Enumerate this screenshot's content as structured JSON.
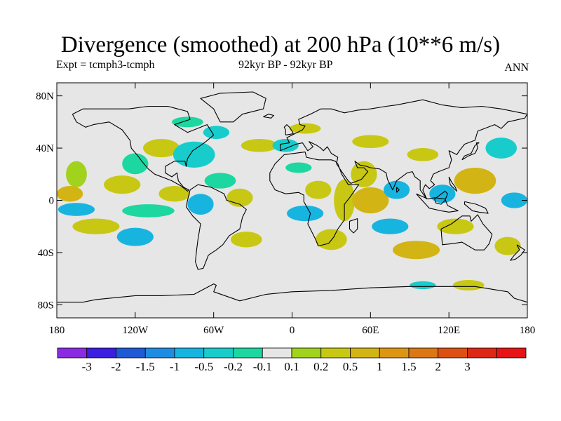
{
  "title": "Divergence (smoothed) at 200 hPa (10**6 m/s)",
  "subtitle_left": "Expt = tcmph3-tcmph",
  "subtitle_center": "92kyr BP - 92kyr BP",
  "subtitle_right": "ANN",
  "map": {
    "projection": "cylindrical-equidistant",
    "lon_range": [
      -180,
      180
    ],
    "lat_range": [
      -90,
      90
    ],
    "background_color": "#e6e6e6",
    "lat_ticks": [
      {
        "value": 80,
        "label": "80N"
      },
      {
        "value": 40,
        "label": "40N"
      },
      {
        "value": 0,
        "label": "0"
      },
      {
        "value": -40,
        "label": "40S"
      },
      {
        "value": -80,
        "label": "80S"
      }
    ],
    "lon_ticks": [
      {
        "value": -180,
        "label": "180"
      },
      {
        "value": -120,
        "label": "120W"
      },
      {
        "value": -60,
        "label": "60W"
      },
      {
        "value": 0,
        "label": "0"
      },
      {
        "value": 60,
        "label": "60E"
      },
      {
        "value": 120,
        "label": "120E"
      },
      {
        "value": 180,
        "label": "180"
      }
    ]
  },
  "colorbar": {
    "colors": [
      "#8a2be2",
      "#3b1ee0",
      "#1e5ad6",
      "#1e8ce0",
      "#18b4e0",
      "#18cccc",
      "#1cd7a0",
      "#e6e6e6",
      "#a0d21e",
      "#c8c814",
      "#d2b414",
      "#dc9614",
      "#dc7814",
      "#dc5014",
      "#dc2814",
      "#e61414"
    ],
    "labels": [
      "-3",
      "-2",
      "-1.5",
      "-1",
      "-0.5",
      "-0.2",
      "-0.1",
      "0.1",
      "0.2",
      "0.5",
      "1",
      "1.5",
      "2",
      "3"
    ]
  },
  "field_regions": [
    {
      "lon": -165,
      "lat": 20,
      "rx": 8,
      "ry": 10,
      "level": 8
    },
    {
      "lon": -170,
      "lat": 5,
      "rx": 10,
      "ry": 6,
      "level": 10
    },
    {
      "lon": -165,
      "lat": -7,
      "rx": 14,
      "ry": 5,
      "level": 4
    },
    {
      "lon": -150,
      "lat": -20,
      "rx": 18,
      "ry": 6,
      "level": 9
    },
    {
      "lon": -120,
      "lat": -28,
      "rx": 14,
      "ry": 7,
      "level": 4
    },
    {
      "lon": -110,
      "lat": -8,
      "rx": 20,
      "ry": 5,
      "level": 6
    },
    {
      "lon": -130,
      "lat": 12,
      "rx": 14,
      "ry": 7,
      "level": 9
    },
    {
      "lon": -120,
      "lat": 28,
      "rx": 10,
      "ry": 8,
      "level": 6
    },
    {
      "lon": -100,
      "lat": 40,
      "rx": 14,
      "ry": 7,
      "level": 9
    },
    {
      "lon": -75,
      "lat": 35,
      "rx": 16,
      "ry": 10,
      "level": 5
    },
    {
      "lon": -58,
      "lat": 52,
      "rx": 10,
      "ry": 5,
      "level": 5
    },
    {
      "lon": -90,
      "lat": 5,
      "rx": 12,
      "ry": 6,
      "level": 9
    },
    {
      "lon": -70,
      "lat": -3,
      "rx": 10,
      "ry": 8,
      "level": 4
    },
    {
      "lon": -55,
      "lat": 15,
      "rx": 12,
      "ry": 6,
      "level": 6
    },
    {
      "lon": -40,
      "lat": 2,
      "rx": 10,
      "ry": 7,
      "level": 9
    },
    {
      "lon": -35,
      "lat": -30,
      "rx": 12,
      "ry": 6,
      "level": 9
    },
    {
      "lon": -25,
      "lat": 42,
      "rx": 14,
      "ry": 5,
      "level": 9
    },
    {
      "lon": -5,
      "lat": 42,
      "rx": 10,
      "ry": 5,
      "level": 5
    },
    {
      "lon": 5,
      "lat": 25,
      "rx": 10,
      "ry": 4,
      "level": 6
    },
    {
      "lon": 20,
      "lat": 8,
      "rx": 10,
      "ry": 7,
      "level": 9
    },
    {
      "lon": 10,
      "lat": -10,
      "rx": 14,
      "ry": 6,
      "level": 4
    },
    {
      "lon": 40,
      "lat": 0,
      "rx": 8,
      "ry": 16,
      "level": 9
    },
    {
      "lon": 30,
      "lat": -30,
      "rx": 12,
      "ry": 8,
      "level": 9
    },
    {
      "lon": 55,
      "lat": 20,
      "rx": 10,
      "ry": 10,
      "level": 9
    },
    {
      "lon": 60,
      "lat": 0,
      "rx": 14,
      "ry": 10,
      "level": 10
    },
    {
      "lon": 75,
      "lat": -20,
      "rx": 14,
      "ry": 6,
      "level": 4
    },
    {
      "lon": 80,
      "lat": 8,
      "rx": 10,
      "ry": 7,
      "level": 4
    },
    {
      "lon": 95,
      "lat": -38,
      "rx": 18,
      "ry": 7,
      "level": 10
    },
    {
      "lon": 115,
      "lat": 5,
      "rx": 10,
      "ry": 7,
      "level": 4
    },
    {
      "lon": 125,
      "lat": -20,
      "rx": 14,
      "ry": 6,
      "level": 9
    },
    {
      "lon": 140,
      "lat": 15,
      "rx": 16,
      "ry": 10,
      "level": 10
    },
    {
      "lon": 160,
      "lat": 40,
      "rx": 12,
      "ry": 8,
      "level": 5
    },
    {
      "lon": 170,
      "lat": 0,
      "rx": 10,
      "ry": 6,
      "level": 4
    },
    {
      "lon": 165,
      "lat": -35,
      "rx": 10,
      "ry": 7,
      "level": 9
    },
    {
      "lon": 100,
      "lat": 35,
      "rx": 12,
      "ry": 5,
      "level": 9
    },
    {
      "lon": 60,
      "lat": 45,
      "rx": 14,
      "ry": 5,
      "level": 9
    },
    {
      "lon": 135,
      "lat": -65,
      "rx": 12,
      "ry": 4,
      "level": 9
    },
    {
      "lon": 100,
      "lat": -65,
      "rx": 10,
      "ry": 3,
      "level": 5
    },
    {
      "lon": -80,
      "lat": 60,
      "rx": 12,
      "ry": 4,
      "level": 6
    },
    {
      "lon": 10,
      "lat": 55,
      "rx": 12,
      "ry": 4,
      "level": 9
    }
  ]
}
